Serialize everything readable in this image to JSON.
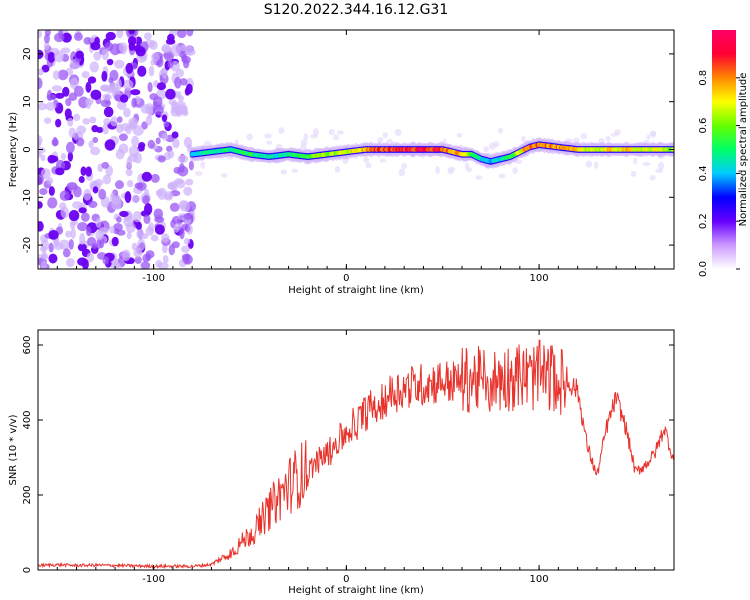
{
  "title": "S120.2022.344.16.12.G31",
  "colors": {
    "snr_line": "#e8332c",
    "spectrogram_noise": "#8a2be2",
    "colormap": [
      "#ffffff",
      "#cc99ff",
      "#6600ff",
      "#0000ff",
      "#00ccff",
      "#00ff66",
      "#66ff00",
      "#ffff00",
      "#ff8800",
      "#ff0033",
      "#ff0066"
    ]
  },
  "chart_data": [
    {
      "type": "heatmap",
      "xlabel": "Height of straight line (km)",
      "ylabel": "Frequency (Hz)",
      "xlim": [
        -160,
        170
      ],
      "ylim": [
        -25,
        25
      ],
      "xticks": [
        -100,
        0,
        100
      ],
      "xtick_labels": [
        "-100",
        "0",
        "100"
      ],
      "yticks": [
        -20,
        -10,
        0,
        10,
        20
      ],
      "ytick_labels": [
        "-20",
        "-10",
        "0",
        "10",
        "20"
      ],
      "noise_region_x": [
        -160,
        -80
      ],
      "signal_start_x": -80,
      "signal_track": {
        "x": [
          -80,
          -70,
          -60,
          -50,
          -40,
          -30,
          -20,
          -10,
          0,
          10,
          20,
          30,
          40,
          50,
          60,
          65,
          70,
          75,
          80,
          85,
          90,
          95,
          100,
          110,
          120,
          130,
          140,
          150,
          160,
          170
        ],
        "frequency": [
          -1,
          -0.5,
          0,
          -1,
          -1.5,
          -1,
          -1.5,
          -1,
          -0.5,
          0,
          0,
          0,
          0,
          0,
          -1,
          -1,
          -2,
          -2.5,
          -2,
          -1.5,
          -0.5,
          0.5,
          1,
          0.5,
          0,
          0,
          0,
          0,
          0,
          0
        ],
        "amplitude": [
          0.4,
          0.5,
          0.5,
          0.55,
          0.45,
          0.5,
          0.6,
          0.65,
          0.7,
          0.8,
          0.9,
          0.95,
          0.95,
          0.9,
          0.75,
          0.6,
          0.45,
          0.4,
          0.45,
          0.55,
          0.7,
          0.85,
          0.9,
          0.8,
          0.75,
          0.7,
          0.75,
          0.75,
          0.7,
          0.65
        ]
      },
      "colorbar": {
        "label": "Normalized spectral amplitude",
        "range": [
          0,
          1
        ],
        "ticks": [
          0,
          0.2,
          0.4,
          0.6,
          0.8
        ],
        "tick_labels": [
          "0.0",
          "0.2",
          "0.4",
          "0.6",
          "0.8"
        ]
      }
    },
    {
      "type": "line",
      "xlabel": "Height of straight line (km)",
      "ylabel": "SNR (10 * v/v)",
      "xlim": [
        -160,
        170
      ],
      "ylim": [
        0,
        640
      ],
      "xticks": [
        -100,
        0,
        100
      ],
      "xtick_labels": [
        "-100",
        "0",
        "100"
      ],
      "yticks": [
        0,
        200,
        400,
        600
      ],
      "ytick_labels": [
        "0",
        "200",
        "400",
        "600"
      ],
      "series": [
        {
          "x": [
            -160,
            -150,
            -140,
            -130,
            -120,
            -110,
            -100,
            -90,
            -80,
            -75,
            -70,
            -65,
            -60,
            -55,
            -50,
            -45,
            -40,
            -35,
            -30,
            -25,
            -20,
            -15,
            -10,
            -5,
            0,
            5,
            10,
            15,
            20,
            25,
            30,
            35,
            40,
            45,
            50,
            55,
            60,
            65,
            70,
            75,
            80,
            85,
            90,
            95,
            100,
            105,
            110,
            115,
            120,
            125,
            130,
            135,
            140,
            145,
            150,
            155,
            160,
            165,
            170
          ],
          "y": [
            12,
            14,
            12,
            13,
            12,
            11,
            10,
            10,
            10,
            12,
            15,
            30,
            45,
            70,
            95,
            125,
            160,
            195,
            225,
            250,
            265,
            290,
            310,
            340,
            365,
            390,
            420,
            440,
            460,
            475,
            485,
            490,
            495,
            500,
            505,
            500,
            505,
            510,
            505,
            500,
            510,
            515,
            520,
            510,
            520,
            515,
            505,
            500,
            480,
            330,
            250,
            380,
            460,
            380,
            260,
            280,
            310,
            380,
            290
          ]
        }
      ]
    }
  ]
}
